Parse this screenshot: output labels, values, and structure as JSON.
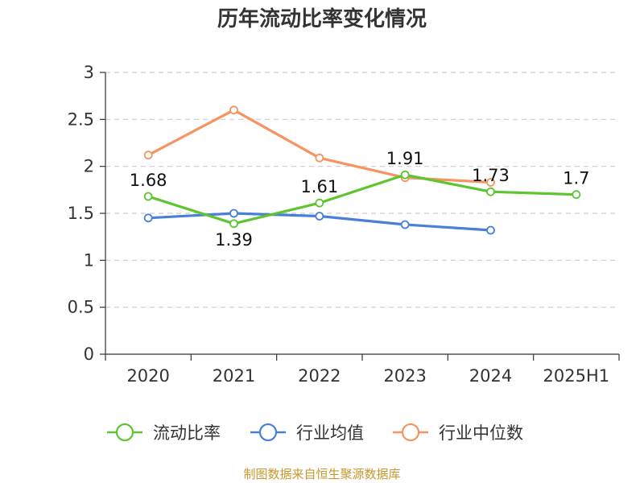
{
  "chart_data": {
    "type": "line",
    "title": "历年流动比率变化情况",
    "categories": [
      "2020",
      "2021",
      "2022",
      "2023",
      "2024",
      "2025H1"
    ],
    "ylim": [
      0,
      3
    ],
    "yticks": [
      "0",
      "0.5",
      "1",
      "1.5",
      "2",
      "2.5",
      "3"
    ],
    "grid": "horizontal-dashed",
    "legend_position": "bottom",
    "series": [
      {
        "name": "流动比率",
        "color": "#5cc530",
        "values": [
          1.68,
          1.39,
          1.61,
          1.91,
          1.73,
          1.7
        ],
        "labels": [
          "1.68",
          "1.39",
          "1.61",
          "1.91",
          "1.73",
          "1.7"
        ]
      },
      {
        "name": "行业均值",
        "color": "#4a7fd9",
        "values": [
          1.45,
          1.5,
          1.47,
          1.38,
          1.32,
          null
        ]
      },
      {
        "name": "行业中位数",
        "color": "#f59462",
        "values": [
          2.12,
          2.6,
          2.09,
          1.88,
          1.83,
          null
        ]
      }
    ]
  },
  "source": "制图数据来自恒生聚源数据库"
}
